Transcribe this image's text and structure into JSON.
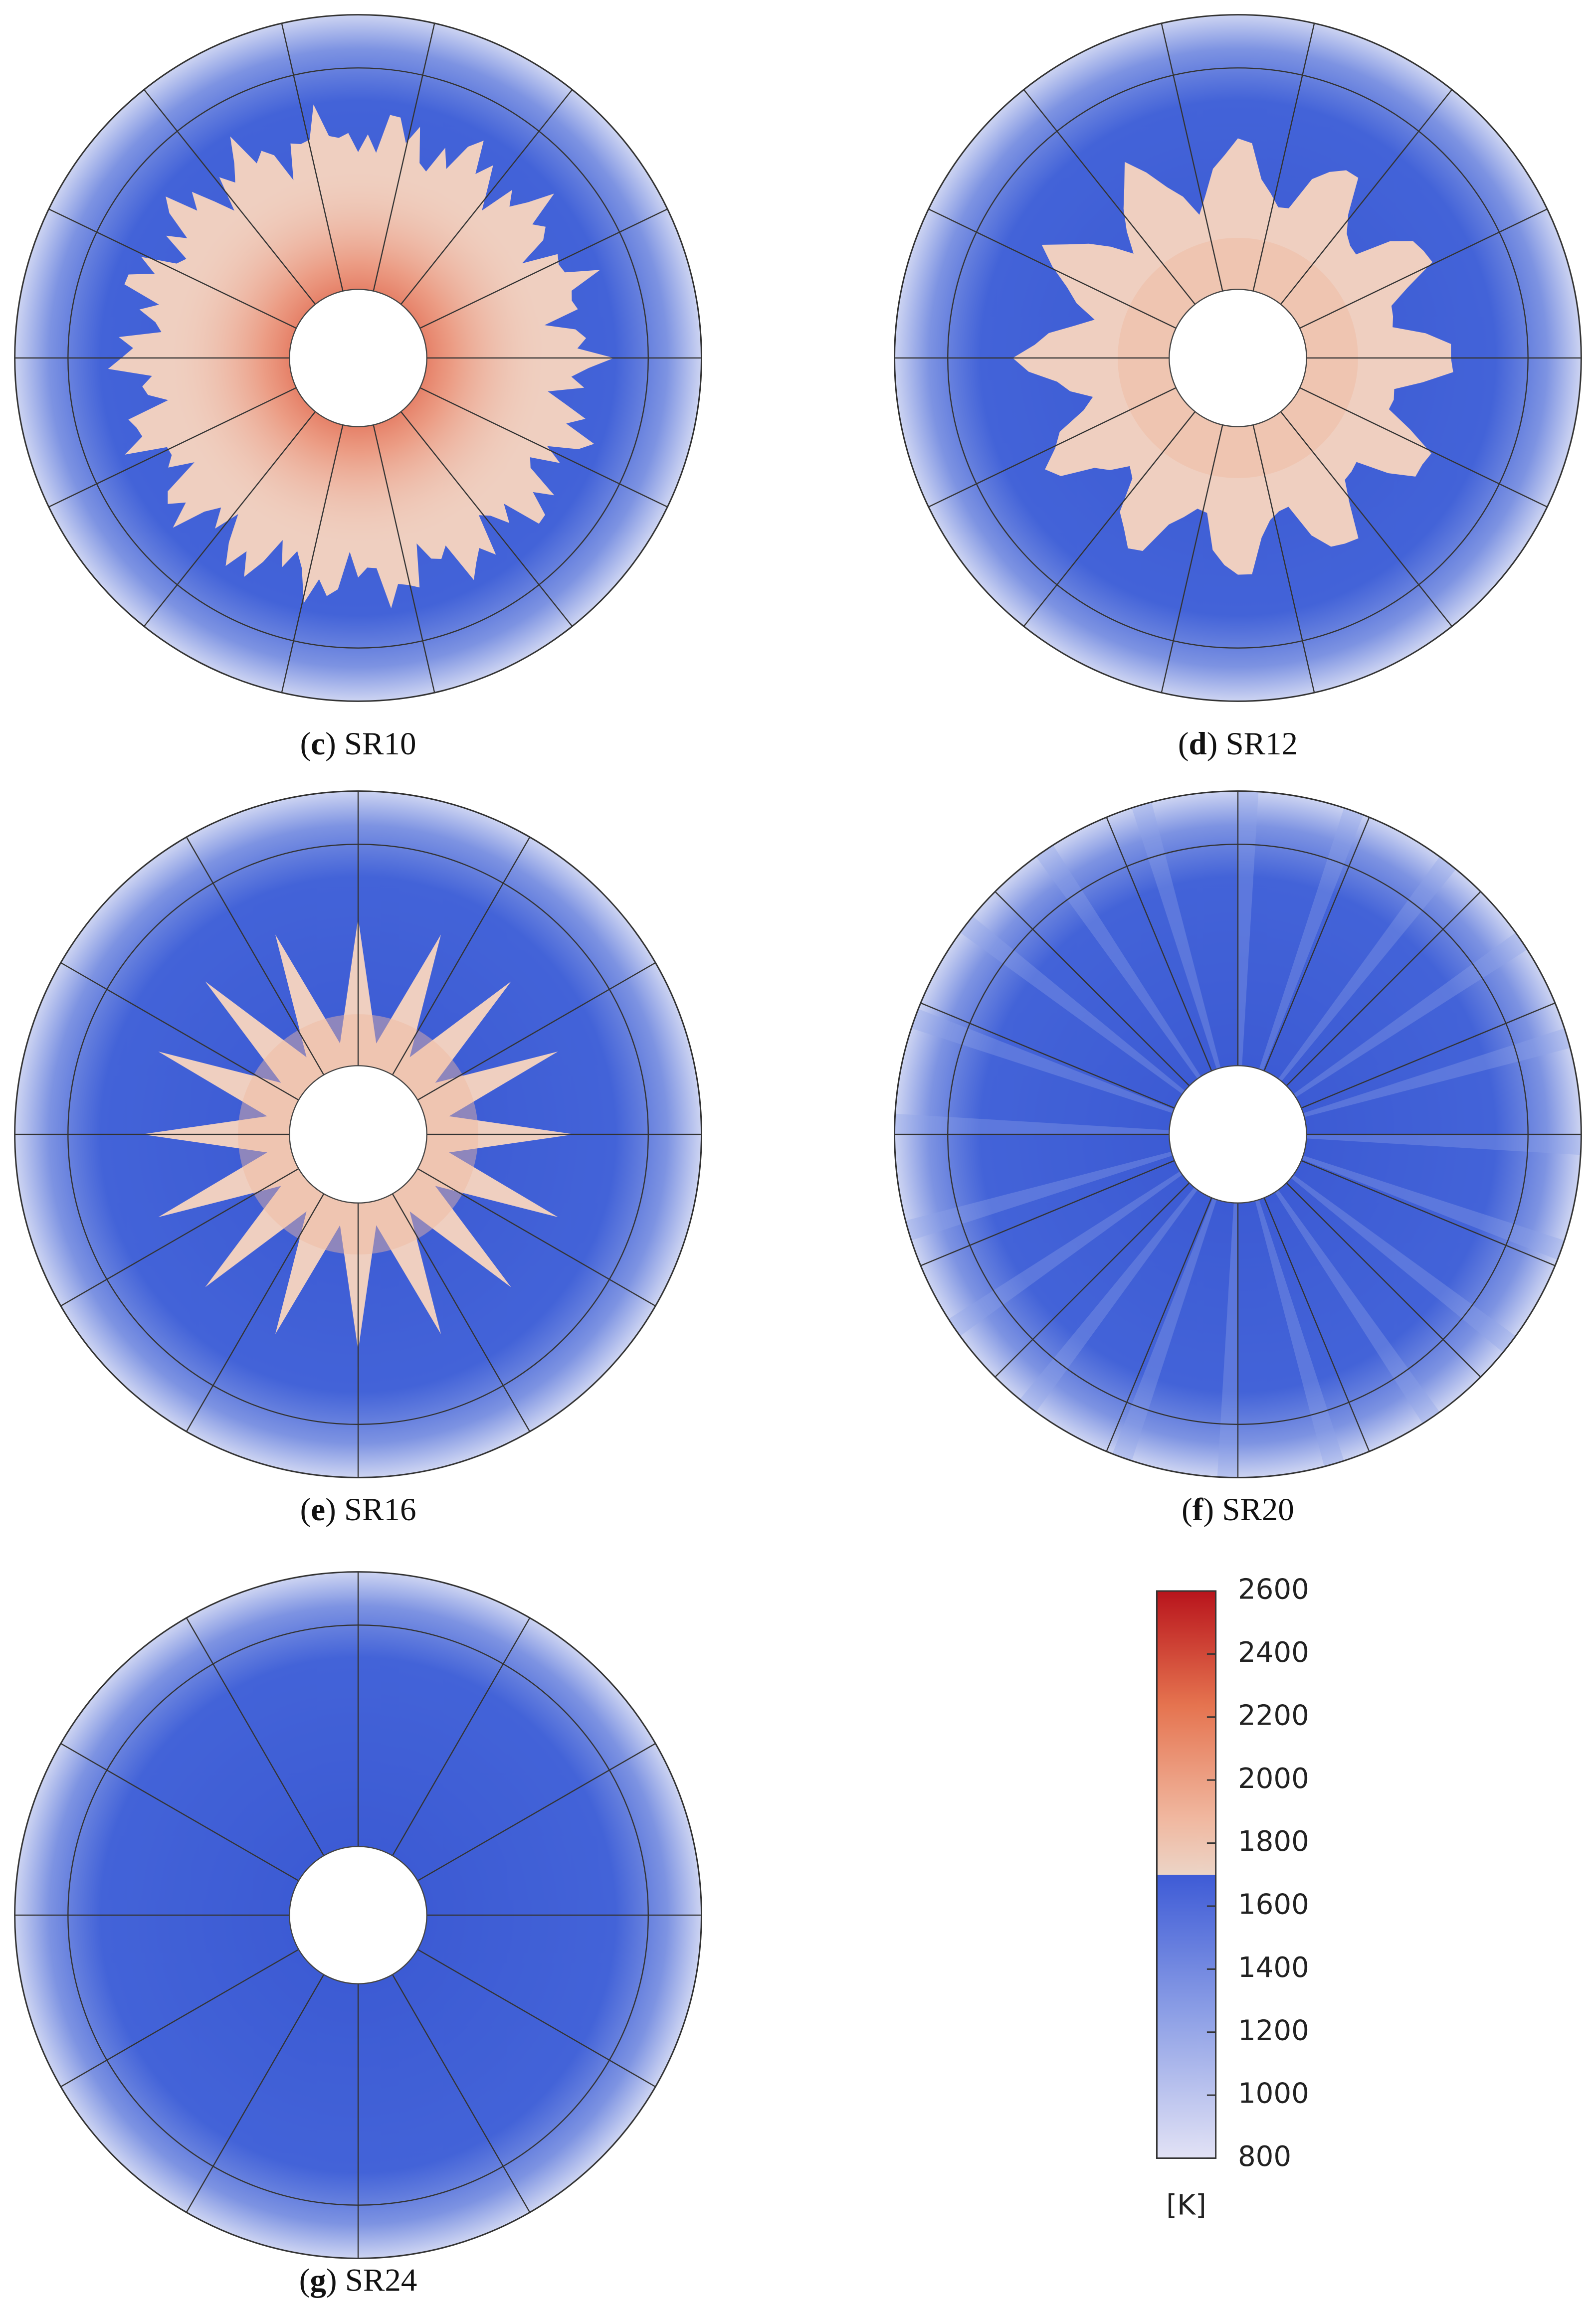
{
  "panels": [
    {
      "caption": [
        "(",
        "c",
        ") SR10"
      ]
    },
    {
      "caption": [
        "(",
        "d",
        ") SR12"
      ]
    },
    {
      "caption": [
        "(",
        "e",
        ") SR16"
      ]
    },
    {
      "caption": [
        "(",
        "f",
        ") SR20"
      ]
    },
    {
      "caption": [
        "(",
        "g",
        ") SR24"
      ]
    }
  ],
  "colorbar": {
    "range": [
      800,
      2600
    ],
    "ticks": [
      800,
      1000,
      1200,
      1400,
      1600,
      1800,
      2000,
      2200,
      2400,
      2600
    ],
    "unit": "[K]"
  }
}
